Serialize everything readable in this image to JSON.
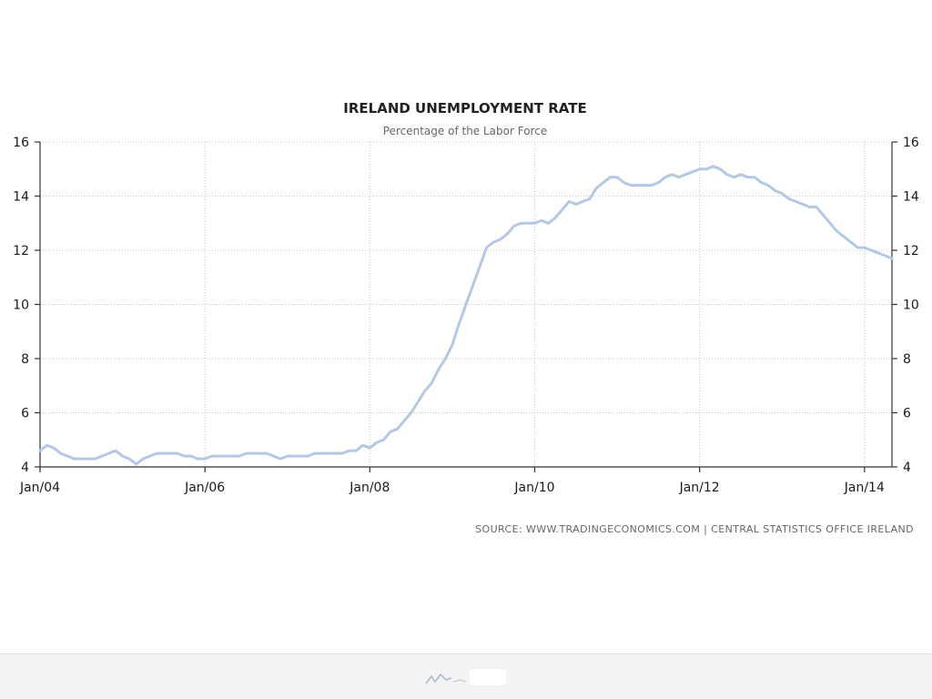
{
  "chart_data": {
    "type": "line",
    "title": "IRELAND UNEMPLOYMENT RATE",
    "subtitle": "Percentage of the Labor Force",
    "source": "SOURCE: WWW.TRADINGECONOMICS.COM | CENTRAL STATISTICS OFFICE IRELAND",
    "xlabel": "",
    "ylabel": "",
    "x_range": [
      "2004-01",
      "2014-05"
    ],
    "ylim": [
      4,
      16
    ],
    "y_ticks": [
      "4",
      "6",
      "8",
      "10",
      "12",
      "14",
      "16"
    ],
    "x_ticks": [
      {
        "date": "2004-01",
        "label": "Jan/04"
      },
      {
        "date": "2006-01",
        "label": "Jan/06"
      },
      {
        "date": "2008-01",
        "label": "Jan/08"
      },
      {
        "date": "2010-01",
        "label": "Jan/10"
      },
      {
        "date": "2012-01",
        "label": "Jan/12"
      },
      {
        "date": "2014-01",
        "label": "Jan/14"
      }
    ],
    "grid": true,
    "dual_y_axis": true,
    "series_color": "#b4c8e4",
    "series": [
      {
        "name": "",
        "points": [
          [
            "2004-01",
            4.6
          ],
          [
            "2004-02",
            4.8
          ],
          [
            "2004-03",
            4.7
          ],
          [
            "2004-04",
            4.5
          ],
          [
            "2004-05",
            4.4
          ],
          [
            "2004-06",
            4.3
          ],
          [
            "2004-07",
            4.3
          ],
          [
            "2004-08",
            4.3
          ],
          [
            "2004-09",
            4.3
          ],
          [
            "2004-10",
            4.4
          ],
          [
            "2004-11",
            4.5
          ],
          [
            "2004-12",
            4.6
          ],
          [
            "2005-01",
            4.4
          ],
          [
            "2005-02",
            4.3
          ],
          [
            "2005-03",
            4.1
          ],
          [
            "2005-04",
            4.3
          ],
          [
            "2005-05",
            4.4
          ],
          [
            "2005-06",
            4.5
          ],
          [
            "2005-07",
            4.5
          ],
          [
            "2005-08",
            4.5
          ],
          [
            "2005-09",
            4.5
          ],
          [
            "2005-10",
            4.4
          ],
          [
            "2005-11",
            4.4
          ],
          [
            "2005-12",
            4.3
          ],
          [
            "2006-01",
            4.3
          ],
          [
            "2006-02",
            4.4
          ],
          [
            "2006-03",
            4.4
          ],
          [
            "2006-04",
            4.4
          ],
          [
            "2006-05",
            4.4
          ],
          [
            "2006-06",
            4.4
          ],
          [
            "2006-07",
            4.5
          ],
          [
            "2006-08",
            4.5
          ],
          [
            "2006-09",
            4.5
          ],
          [
            "2006-10",
            4.5
          ],
          [
            "2006-11",
            4.4
          ],
          [
            "2006-12",
            4.3
          ],
          [
            "2007-01",
            4.4
          ],
          [
            "2007-02",
            4.4
          ],
          [
            "2007-03",
            4.4
          ],
          [
            "2007-04",
            4.4
          ],
          [
            "2007-05",
            4.5
          ],
          [
            "2007-06",
            4.5
          ],
          [
            "2007-07",
            4.5
          ],
          [
            "2007-08",
            4.5
          ],
          [
            "2007-09",
            4.5
          ],
          [
            "2007-10",
            4.6
          ],
          [
            "2007-11",
            4.6
          ],
          [
            "2007-12",
            4.8
          ],
          [
            "2008-01",
            4.7
          ],
          [
            "2008-02",
            4.9
          ],
          [
            "2008-03",
            5.0
          ],
          [
            "2008-04",
            5.3
          ],
          [
            "2008-05",
            5.4
          ],
          [
            "2008-06",
            5.7
          ],
          [
            "2008-07",
            6.0
          ],
          [
            "2008-08",
            6.4
          ],
          [
            "2008-09",
            6.8
          ],
          [
            "2008-10",
            7.1
          ],
          [
            "2008-11",
            7.6
          ],
          [
            "2008-12",
            8.0
          ],
          [
            "2009-01",
            8.5
          ],
          [
            "2009-02",
            9.3
          ],
          [
            "2009-03",
            10.0
          ],
          [
            "2009-04",
            10.7
          ],
          [
            "2009-05",
            11.4
          ],
          [
            "2009-06",
            12.1
          ],
          [
            "2009-07",
            12.3
          ],
          [
            "2009-08",
            12.4
          ],
          [
            "2009-09",
            12.6
          ],
          [
            "2009-10",
            12.9
          ],
          [
            "2009-11",
            13.0
          ],
          [
            "2009-12",
            13.0
          ],
          [
            "2010-01",
            13.0
          ],
          [
            "2010-02",
            13.1
          ],
          [
            "2010-03",
            13.0
          ],
          [
            "2010-04",
            13.2
          ],
          [
            "2010-05",
            13.5
          ],
          [
            "2010-06",
            13.8
          ],
          [
            "2010-07",
            13.7
          ],
          [
            "2010-08",
            13.8
          ],
          [
            "2010-09",
            13.9
          ],
          [
            "2010-10",
            14.3
          ],
          [
            "2010-11",
            14.5
          ],
          [
            "2010-12",
            14.7
          ],
          [
            "2011-01",
            14.7
          ],
          [
            "2011-02",
            14.5
          ],
          [
            "2011-03",
            14.4
          ],
          [
            "2011-04",
            14.4
          ],
          [
            "2011-05",
            14.4
          ],
          [
            "2011-06",
            14.4
          ],
          [
            "2011-07",
            14.5
          ],
          [
            "2011-08",
            14.7
          ],
          [
            "2011-09",
            14.8
          ],
          [
            "2011-10",
            14.7
          ],
          [
            "2011-11",
            14.8
          ],
          [
            "2011-12",
            14.9
          ],
          [
            "2012-01",
            15.0
          ],
          [
            "2012-02",
            15.0
          ],
          [
            "2012-03",
            15.1
          ],
          [
            "2012-04",
            15.0
          ],
          [
            "2012-05",
            14.8
          ],
          [
            "2012-06",
            14.7
          ],
          [
            "2012-07",
            14.8
          ],
          [
            "2012-08",
            14.7
          ],
          [
            "2012-09",
            14.7
          ],
          [
            "2012-10",
            14.5
          ],
          [
            "2012-11",
            14.4
          ],
          [
            "2012-12",
            14.2
          ],
          [
            "2013-01",
            14.1
          ],
          [
            "2013-02",
            13.9
          ],
          [
            "2013-03",
            13.8
          ],
          [
            "2013-04",
            13.7
          ],
          [
            "2013-05",
            13.6
          ],
          [
            "2013-06",
            13.6
          ],
          [
            "2013-07",
            13.3
          ],
          [
            "2013-08",
            13.0
          ],
          [
            "2013-09",
            12.7
          ],
          [
            "2013-10",
            12.5
          ],
          [
            "2013-11",
            12.3
          ],
          [
            "2013-12",
            12.1
          ],
          [
            "2014-01",
            12.1
          ],
          [
            "2014-02",
            12.0
          ],
          [
            "2014-03",
            11.9
          ],
          [
            "2014-04",
            11.8
          ],
          [
            "2014-05",
            11.7
          ]
        ]
      }
    ]
  }
}
